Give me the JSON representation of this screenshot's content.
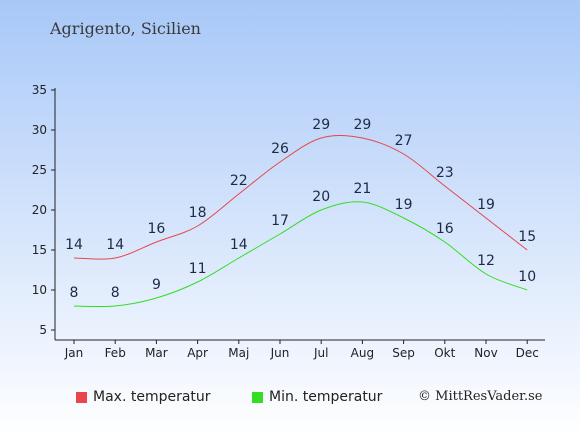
{
  "chart_data": {
    "type": "line",
    "title": "Agrigento, Sicilien",
    "categories": [
      "Jan",
      "Feb",
      "Mar",
      "Apr",
      "Maj",
      "Jun",
      "Jul",
      "Aug",
      "Sep",
      "Okt",
      "Nov",
      "Dec"
    ],
    "series": [
      {
        "name": "Max. temperatur",
        "color": "#e8464a",
        "values": [
          14,
          14,
          16,
          18,
          22,
          26,
          29,
          29,
          27,
          23,
          19,
          15
        ]
      },
      {
        "name": "Min. temperatur",
        "color": "#33dd22",
        "values": [
          8,
          8,
          9,
          11,
          14,
          17,
          20,
          21,
          19,
          16,
          12,
          10
        ]
      }
    ],
    "ylim": [
      5,
      35
    ],
    "yticks": [
      5,
      10,
      15,
      20,
      25,
      30,
      35
    ],
    "grid": false,
    "legend": "bottom"
  },
  "credit": "© MittResVader.se",
  "colors": {
    "background_top": "#a8c8f8",
    "background_bottom": "#ffffff"
  }
}
